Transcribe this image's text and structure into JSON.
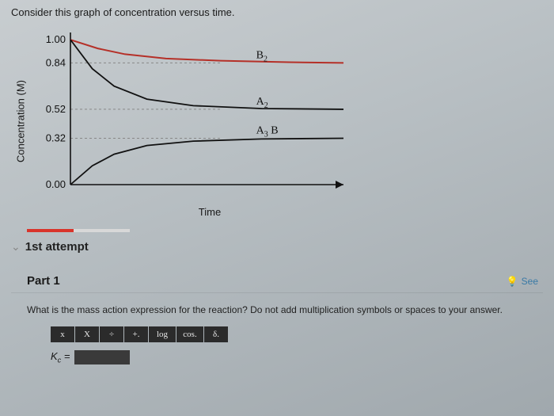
{
  "prompt": "Consider this graph of concentration versus time.",
  "chart": {
    "type": "line",
    "xlabel": "Time",
    "ylabel": "Concentration (M)",
    "label_fontsize": 13,
    "background_color": "transparent",
    "axis_color": "#111111",
    "grid_color": "#888888",
    "xlim": [
      0,
      100
    ],
    "ylim": [
      0,
      1.05
    ],
    "yticks": [
      0.0,
      0.32,
      0.52,
      0.84,
      1.0
    ],
    "ytick_labels": [
      "0.00",
      "0.32",
      "0.52",
      "0.84",
      "1.00"
    ],
    "series": [
      {
        "label_html": "B<sub>2</sub>",
        "label_plain": "B2",
        "color": "#b53028",
        "points": [
          [
            0,
            1.0
          ],
          [
            10,
            0.94
          ],
          [
            20,
            0.9
          ],
          [
            35,
            0.87
          ],
          [
            55,
            0.855
          ],
          [
            80,
            0.845
          ],
          [
            100,
            0.84
          ]
        ],
        "line_width": 2,
        "asymptote": 0.84
      },
      {
        "label_html": "A<sub>2</sub>",
        "label_plain": "A2",
        "color": "#111111",
        "points": [
          [
            0,
            1.0
          ],
          [
            8,
            0.8
          ],
          [
            16,
            0.68
          ],
          [
            28,
            0.59
          ],
          [
            45,
            0.545
          ],
          [
            70,
            0.525
          ],
          [
            100,
            0.52
          ]
        ],
        "line_width": 1.8,
        "asymptote": 0.52
      },
      {
        "label_html": "A<sub>3</sub>B",
        "label_plain": "A3B",
        "color": "#111111",
        "points": [
          [
            0,
            0.0
          ],
          [
            8,
            0.13
          ],
          [
            16,
            0.21
          ],
          [
            28,
            0.27
          ],
          [
            45,
            0.3
          ],
          [
            70,
            0.315
          ],
          [
            100,
            0.32
          ]
        ],
        "line_width": 1.8,
        "asymptote": 0.32
      }
    ]
  },
  "progress": {
    "fill_pct": 45,
    "fill_color": "#d9342b",
    "track_color": "#d8d8d8"
  },
  "attempt": {
    "text": "1st attempt",
    "chevron": "⌄"
  },
  "part": {
    "label": "Part 1",
    "see_text": "See"
  },
  "question_text": "What is the mass action expression for the reaction? Do not add multiplication symbols or spaces to your answer.",
  "toolbar": {
    "buttons": [
      "x",
      "X",
      "÷",
      "+.",
      "log",
      "cos.",
      "δ."
    ]
  },
  "input": {
    "lhs_html": "K<sub class=\"sml\">c</sub>&nbsp;="
  }
}
